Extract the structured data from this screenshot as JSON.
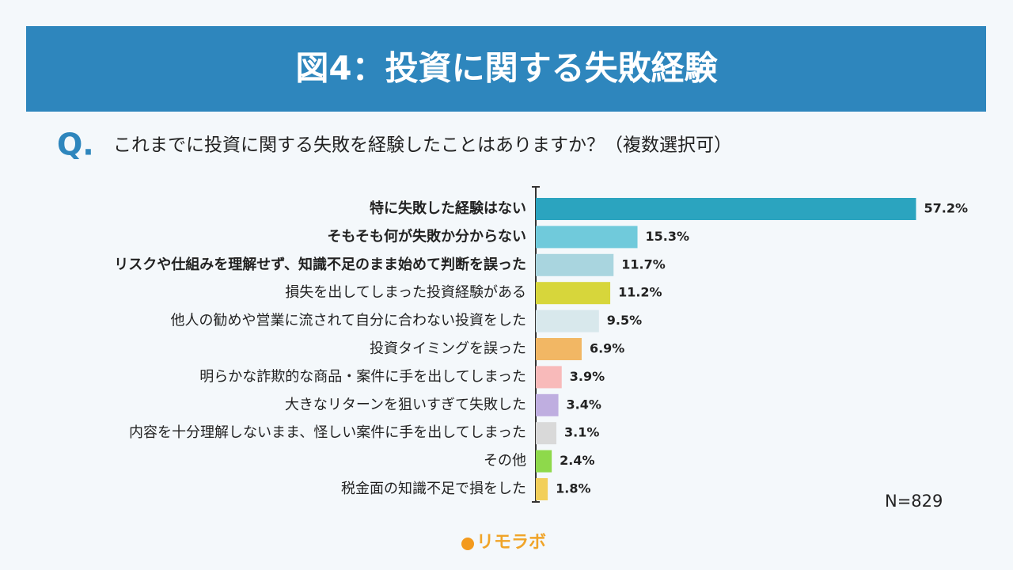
{
  "chart_data": {
    "type": "bar",
    "orientation": "horizontal",
    "title": "図4：投資に関する失敗経験",
    "question_mark": "Q.",
    "subtitle": "これまでに投資に関する失敗を経験したことはありますか？（複数選択可）",
    "categories": [
      "特に失敗した経験はない",
      "そもそも何が失敗か分からない",
      "リスクや仕組みを理解せず、知識不足のまま始めて判断を誤った",
      "損失を出してしまった投資経験がある",
      "他人の勧めや営業に流されて自分に合わない投資をした",
      "投資タイミングを誤った",
      "明らかな詐欺的な商品・案件に手を出してしまった",
      "大きなリターンを狙いすぎて失敗した",
      "内容を十分理解しないまま、怪しい案件に手を出してしまった",
      "その他",
      "税金面の知識不足で損をした"
    ],
    "values": [
      57.2,
      15.3,
      11.7,
      11.2,
      9.5,
      6.9,
      3.9,
      3.4,
      3.1,
      2.4,
      1.8
    ],
    "value_labels": [
      "57.2%",
      "15.3%",
      "11.7%",
      "11.2%",
      "9.5%",
      "6.9%",
      "3.9%",
      "3.4%",
      "3.1%",
      "2.4%",
      "1.8%"
    ],
    "colors": [
      "#2ba4bf",
      "#70cadb",
      "#a9d5df",
      "#d7d63b",
      "#d8e8ec",
      "#f2b764",
      "#f8baba",
      "#bfaee0",
      "#d9d9d9",
      "#8ed94b",
      "#f2cf5a"
    ],
    "xlim": [
      0,
      60
    ],
    "note": "N=829",
    "brand": "リモラボ"
  }
}
